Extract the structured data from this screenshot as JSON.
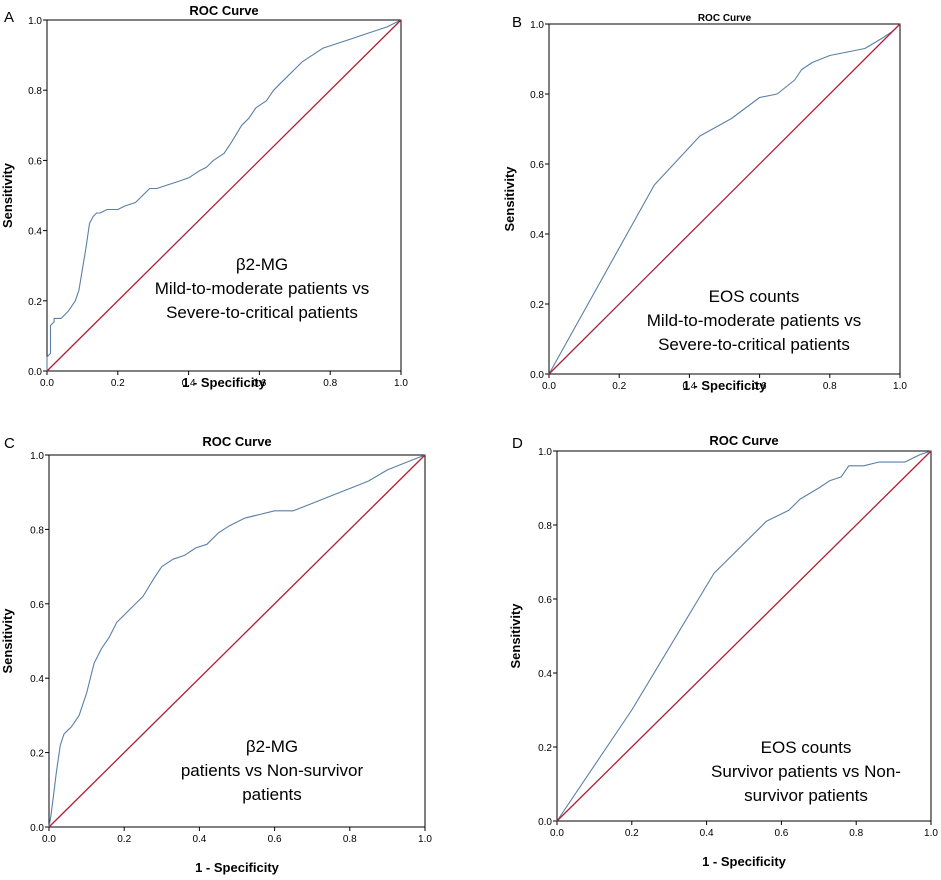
{
  "colors": {
    "roc_curve": "#5b7fa6",
    "reference_line": "#b01f35",
    "frame": "#000000"
  },
  "chart_data": [
    {
      "type": "line",
      "panel_letter": "A",
      "title": "ROC Curve",
      "xlabel": "1 - Specificity",
      "ylabel": "Sensitivity",
      "xlim": [
        0,
        1
      ],
      "ylim": [
        0,
        1
      ],
      "x_ticks": [
        "0.0",
        "0.2",
        "0.4",
        "0.6",
        "0.8",
        "1.0"
      ],
      "y_ticks": [
        "0.0",
        "0.2",
        "0.4",
        "0.6",
        "0.8",
        "1.0"
      ],
      "annotation": [
        "β2-MG",
        "Mild-to-moderate patients vs",
        "Severe-to-critical patients"
      ],
      "series": [
        {
          "name": "ROC curve",
          "x": [
            0,
            0,
            0.01,
            0.01,
            0.02,
            0.02,
            0.04,
            0.06,
            0.08,
            0.09,
            0.1,
            0.11,
            0.12,
            0.13,
            0.14,
            0.15,
            0.17,
            0.2,
            0.22,
            0.25,
            0.27,
            0.29,
            0.31,
            0.34,
            0.37,
            0.4,
            0.43,
            0.45,
            0.47,
            0.5,
            0.52,
            0.55,
            0.57,
            0.59,
            0.62,
            0.64,
            0.66,
            0.68,
            0.7,
            0.72,
            0.75,
            0.78,
            0.81,
            0.84,
            0.87,
            0.9,
            0.93,
            0.96,
            0.98,
            1.0
          ],
          "y": [
            0,
            0.04,
            0.05,
            0.13,
            0.14,
            0.15,
            0.15,
            0.17,
            0.2,
            0.23,
            0.29,
            0.35,
            0.42,
            0.44,
            0.45,
            0.45,
            0.46,
            0.46,
            0.47,
            0.48,
            0.5,
            0.52,
            0.52,
            0.53,
            0.54,
            0.55,
            0.57,
            0.58,
            0.6,
            0.62,
            0.65,
            0.7,
            0.72,
            0.75,
            0.77,
            0.8,
            0.82,
            0.84,
            0.86,
            0.88,
            0.9,
            0.92,
            0.93,
            0.94,
            0.95,
            0.96,
            0.97,
            0.98,
            0.99,
            1.0
          ]
        },
        {
          "name": "Reference line",
          "x": [
            0,
            1
          ],
          "y": [
            0,
            1
          ]
        }
      ]
    },
    {
      "type": "line",
      "panel_letter": "B",
      "title": "ROC Curve",
      "xlabel": "1 - Specificity",
      "ylabel": "Sensitivity",
      "xlim": [
        0,
        1
      ],
      "ylim": [
        0,
        1
      ],
      "x_ticks": [
        "0.0",
        "0.2",
        "0.4",
        "0.6",
        "0.8",
        "1.0"
      ],
      "y_ticks": [
        "0.0",
        "0.2",
        "0.4",
        "0.6",
        "0.8",
        "1.0"
      ],
      "annotation": [
        "EOS counts",
        "Mild-to-moderate patients vs",
        "Severe-to-critical patients"
      ],
      "series": [
        {
          "name": "ROC curve",
          "x": [
            0,
            0.3,
            0.43,
            0.52,
            0.6,
            0.65,
            0.7,
            0.72,
            0.75,
            0.8,
            0.85,
            0.9,
            0.95,
            0.98,
            1.0
          ],
          "y": [
            0,
            0.54,
            0.68,
            0.73,
            0.79,
            0.8,
            0.84,
            0.87,
            0.89,
            0.91,
            0.92,
            0.93,
            0.96,
            0.98,
            1.0
          ]
        },
        {
          "name": "Reference line",
          "x": [
            0,
            1
          ],
          "y": [
            0,
            1
          ]
        }
      ]
    },
    {
      "type": "line",
      "panel_letter": "C",
      "title": "ROC Curve",
      "xlabel": "1 - Specificity",
      "ylabel": "Sensitivity",
      "xlim": [
        0,
        1
      ],
      "ylim": [
        0,
        1
      ],
      "x_ticks": [
        "0.0",
        "0.2",
        "0.4",
        "0.6",
        "0.8",
        "1.0"
      ],
      "y_ticks": [
        "0.0",
        "0.2",
        "0.4",
        "0.6",
        "0.8",
        "1.0"
      ],
      "annotation": [
        "β2-MG",
        "patients vs Non-survivor",
        "patients"
      ],
      "series": [
        {
          "name": "ROC curve",
          "x": [
            0,
            0.005,
            0.01,
            0.02,
            0.03,
            0.04,
            0.05,
            0.06,
            0.08,
            0.1,
            0.12,
            0.14,
            0.16,
            0.18,
            0.2,
            0.22,
            0.25,
            0.28,
            0.3,
            0.33,
            0.36,
            0.39,
            0.42,
            0.45,
            0.48,
            0.52,
            0.56,
            0.6,
            0.65,
            0.7,
            0.75,
            0.8,
            0.85,
            0.9,
            0.95,
            1.0
          ],
          "y": [
            0,
            0.03,
            0.07,
            0.15,
            0.22,
            0.25,
            0.26,
            0.27,
            0.3,
            0.36,
            0.44,
            0.48,
            0.51,
            0.55,
            0.57,
            0.59,
            0.62,
            0.67,
            0.7,
            0.72,
            0.73,
            0.75,
            0.76,
            0.79,
            0.81,
            0.83,
            0.84,
            0.85,
            0.85,
            0.87,
            0.89,
            0.91,
            0.93,
            0.96,
            0.98,
            1.0
          ]
        },
        {
          "name": "Reference line",
          "x": [
            0,
            1
          ],
          "y": [
            0,
            1
          ]
        }
      ]
    },
    {
      "type": "line",
      "panel_letter": "D",
      "title": "ROC Curve",
      "xlabel": "1 - Specificity",
      "ylabel": "Sensitivity",
      "xlim": [
        0,
        1
      ],
      "ylim": [
        0,
        1
      ],
      "x_ticks": [
        "0.0",
        "0.2",
        "0.4",
        "0.6",
        "0.8",
        "1.0"
      ],
      "y_ticks": [
        "0.0",
        "0.2",
        "0.4",
        "0.6",
        "0.8",
        "1.0"
      ],
      "annotation": [
        "EOS counts",
        "Survivor patients vs Non-",
        "survivor patients"
      ],
      "series": [
        {
          "name": "ROC curve",
          "x": [
            0,
            0.2,
            0.42,
            0.56,
            0.62,
            0.65,
            0.7,
            0.73,
            0.76,
            0.78,
            0.82,
            0.86,
            0.9,
            0.93,
            0.95,
            0.97,
            1.0
          ],
          "y": [
            0,
            0.3,
            0.67,
            0.81,
            0.84,
            0.87,
            0.9,
            0.92,
            0.93,
            0.96,
            0.96,
            0.97,
            0.97,
            0.97,
            0.98,
            0.99,
            1.0
          ]
        },
        {
          "name": "Reference line",
          "x": [
            0,
            1
          ],
          "y": [
            0,
            1
          ]
        }
      ]
    }
  ]
}
